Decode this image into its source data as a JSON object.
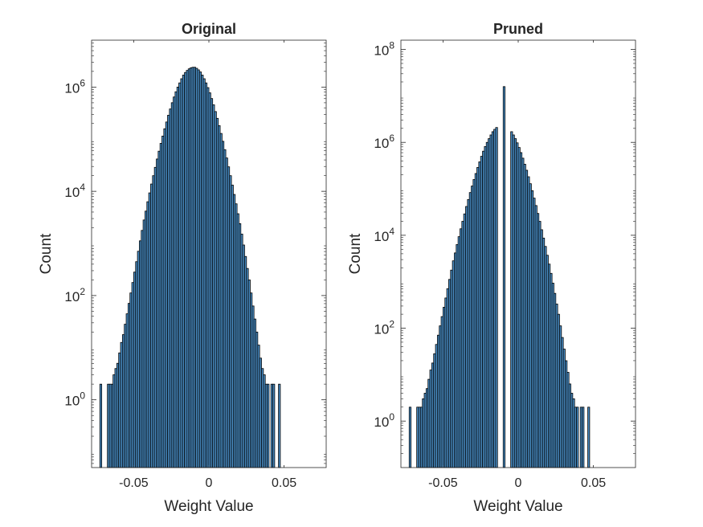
{
  "chart_data": [
    {
      "type": "bar",
      "title": "Original",
      "xlabel": "Weight Value",
      "ylabel": "Count",
      "yscale": "log",
      "xlim": [
        -0.078,
        0.078
      ],
      "ylim_exp": [
        -1.3,
        6.9
      ],
      "xticks": [
        {
          "value": -0.05,
          "label": "-0.05"
        },
        {
          "value": 0,
          "label": "0"
        },
        {
          "value": 0.05,
          "label": "0.05"
        }
      ],
      "yticks": [
        {
          "exp": 0,
          "base": "10",
          "sup": "0"
        },
        {
          "exp": 2,
          "base": "10",
          "sup": "2"
        },
        {
          "exp": 4,
          "base": "10",
          "sup": "4"
        },
        {
          "exp": 6,
          "base": "10",
          "sup": "6"
        }
      ],
      "bin_width": 0.00125,
      "bin_start": -0.0725,
      "counts_log10": [
        0.3,
        -9,
        -9,
        -9,
        0.3,
        0.3,
        0.3,
        0.48,
        0.6,
        0.7,
        0.9,
        1.1,
        1.25,
        1.45,
        1.65,
        1.85,
        2.05,
        2.25,
        2.45,
        2.65,
        2.85,
        3.05,
        3.25,
        3.45,
        3.62,
        3.8,
        3.97,
        4.14,
        4.3,
        4.46,
        4.62,
        4.77,
        4.92,
        5.06,
        5.2,
        5.33,
        5.46,
        5.58,
        5.7,
        5.81,
        5.91,
        6.0,
        6.08,
        6.16,
        6.23,
        6.28,
        6.32,
        6.35,
        6.37,
        6.38,
        6.38,
        6.36,
        6.33,
        6.29,
        6.23,
        6.16,
        6.08,
        5.99,
        5.89,
        5.78,
        5.66,
        5.53,
        5.4,
        5.26,
        5.11,
        4.96,
        4.8,
        4.64,
        4.47,
        4.3,
        4.12,
        3.94,
        3.76,
        3.57,
        3.38,
        3.18,
        2.97,
        2.75,
        2.52,
        2.3,
        2.05,
        1.8,
        1.55,
        1.3,
        1.05,
        0.8,
        0.6,
        0.48,
        0.3,
        0.3,
        -9,
        0.3,
        0.3,
        -9,
        -9,
        0.3
      ]
    },
    {
      "type": "bar",
      "title": "Pruned",
      "xlabel": "Weight Value",
      "ylabel": "Count",
      "yscale": "log",
      "xlim": [
        -0.078,
        0.078
      ],
      "ylim_exp": [
        -1,
        8.2
      ],
      "xticks": [
        {
          "value": -0.05,
          "label": "-0.05"
        },
        {
          "value": 0,
          "label": "0"
        },
        {
          "value": 0.05,
          "label": "0.05"
        }
      ],
      "yticks": [
        {
          "exp": 0,
          "base": "10",
          "sup": "0"
        },
        {
          "exp": 2,
          "base": "10",
          "sup": "2"
        },
        {
          "exp": 4,
          "base": "10",
          "sup": "4"
        },
        {
          "exp": 6,
          "base": "10",
          "sup": "6"
        },
        {
          "exp": 8,
          "base": "10",
          "sup": "8"
        }
      ],
      "bin_width": 0.00125,
      "bin_start": -0.0725,
      "counts_log10": [
        0.3,
        -9,
        -9,
        -9,
        0.3,
        0.3,
        0.3,
        0.48,
        0.6,
        0.7,
        0.9,
        1.1,
        1.25,
        1.45,
        1.65,
        1.85,
        2.05,
        2.25,
        2.45,
        2.65,
        2.85,
        3.05,
        3.25,
        3.45,
        3.62,
        3.8,
        3.97,
        4.14,
        4.3,
        4.46,
        4.62,
        4.77,
        4.92,
        5.06,
        5.2,
        5.33,
        5.46,
        5.58,
        5.7,
        5.81,
        5.91,
        6.0,
        6.08,
        6.16,
        6.23,
        6.28,
        6.32,
        -9,
        -9,
        -9,
        7.2,
        -9,
        -9,
        -9,
        6.23,
        6.16,
        6.08,
        5.99,
        5.89,
        5.78,
        5.66,
        5.53,
        5.4,
        5.26,
        5.11,
        4.96,
        4.8,
        4.64,
        4.47,
        4.3,
        4.12,
        3.94,
        3.76,
        3.57,
        3.38,
        3.18,
        2.97,
        2.75,
        2.52,
        2.3,
        2.05,
        1.8,
        1.55,
        1.3,
        1.05,
        0.8,
        0.6,
        0.48,
        0.3,
        0.3,
        -9,
        0.3,
        0.3,
        -9,
        -9,
        0.3
      ]
    }
  ],
  "colors": {
    "bar_fill": "#4a8fc7",
    "bar_edge": "#000000",
    "axis": "#262626",
    "background": "#ffffff"
  }
}
